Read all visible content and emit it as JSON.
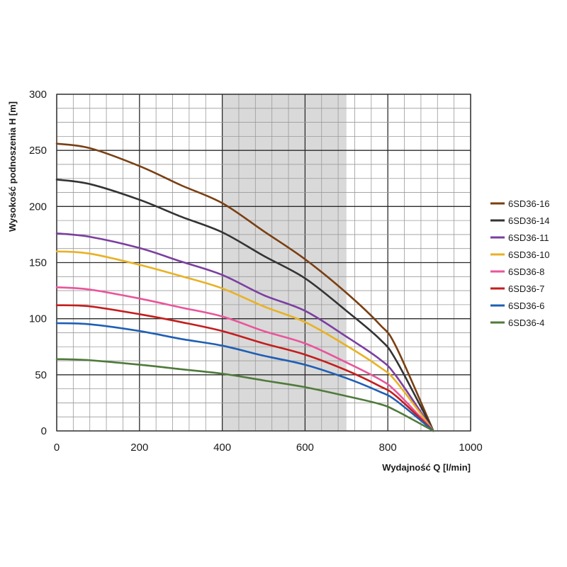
{
  "chart_data": {
    "type": "line",
    "title": "",
    "xlabel": "Wydajność Q [l/min]",
    "ylabel": "Wysokość podnoszenia H [m]",
    "xlim": [
      0,
      1000
    ],
    "ylim": [
      0,
      300
    ],
    "x_ticks": [
      "0",
      "200",
      "400",
      "600",
      "800",
      "1000"
    ],
    "y_ticks": [
      "0",
      "50",
      "100",
      "150",
      "200",
      "250",
      "300"
    ],
    "grid": true,
    "legend_position": "right",
    "highlight_band": {
      "x_from": 400,
      "x_to": 700,
      "color": "#d9d9d9"
    },
    "series": [
      {
        "name": "6SD36-16",
        "color": "#7a3f12",
        "x": [
          0,
          80,
          200,
          300,
          400,
          500,
          600,
          700,
          780,
          820,
          910
        ],
        "y": [
          256,
          252,
          236,
          219,
          203,
          178,
          153,
          123,
          95,
          75,
          0
        ]
      },
      {
        "name": "6SD36-14",
        "color": "#333333",
        "x": [
          0,
          80,
          200,
          300,
          400,
          500,
          600,
          700,
          780,
          820,
          910
        ],
        "y": [
          224,
          220,
          206,
          191,
          177,
          156,
          136,
          107,
          82,
          63,
          0
        ]
      },
      {
        "name": "6SD36-11",
        "color": "#7b3fa0",
        "x": [
          0,
          80,
          200,
          300,
          400,
          500,
          600,
          700,
          780,
          820,
          910
        ],
        "y": [
          176,
          173,
          163,
          151,
          139,
          121,
          107,
          84,
          64,
          49,
          0
        ]
      },
      {
        "name": "6SD36-10",
        "color": "#e8b224",
        "x": [
          0,
          80,
          200,
          300,
          400,
          500,
          600,
          700,
          780,
          820,
          910
        ],
        "y": [
          160,
          158,
          148,
          138,
          127,
          111,
          97,
          76,
          57,
          44,
          0
        ]
      },
      {
        "name": "6SD36-8",
        "color": "#e9559a",
        "x": [
          0,
          80,
          200,
          300,
          400,
          500,
          600,
          700,
          780,
          820,
          910
        ],
        "y": [
          128,
          126,
          118,
          110,
          102,
          89,
          78,
          61,
          46,
          35,
          0
        ]
      },
      {
        "name": "6SD36-7",
        "color": "#c41e1e",
        "x": [
          0,
          80,
          200,
          300,
          400,
          500,
          600,
          700,
          780,
          820,
          910
        ],
        "y": [
          112,
          111,
          104,
          97,
          89,
          78,
          68,
          54,
          40,
          31,
          0
        ]
      },
      {
        "name": "6SD36-6",
        "color": "#1f5fb4",
        "x": [
          0,
          80,
          200,
          300,
          400,
          500,
          600,
          700,
          780,
          820,
          910
        ],
        "y": [
          96,
          95,
          89,
          82,
          76,
          67,
          59,
          47,
          35,
          27,
          0
        ]
      },
      {
        "name": "6SD36-4",
        "color": "#4f7a3a",
        "x": [
          0,
          80,
          200,
          300,
          400,
          500,
          600,
          700,
          780,
          820,
          910
        ],
        "y": [
          64,
          63,
          59,
          55,
          51,
          45,
          39,
          31,
          24,
          18,
          0
        ]
      }
    ]
  }
}
